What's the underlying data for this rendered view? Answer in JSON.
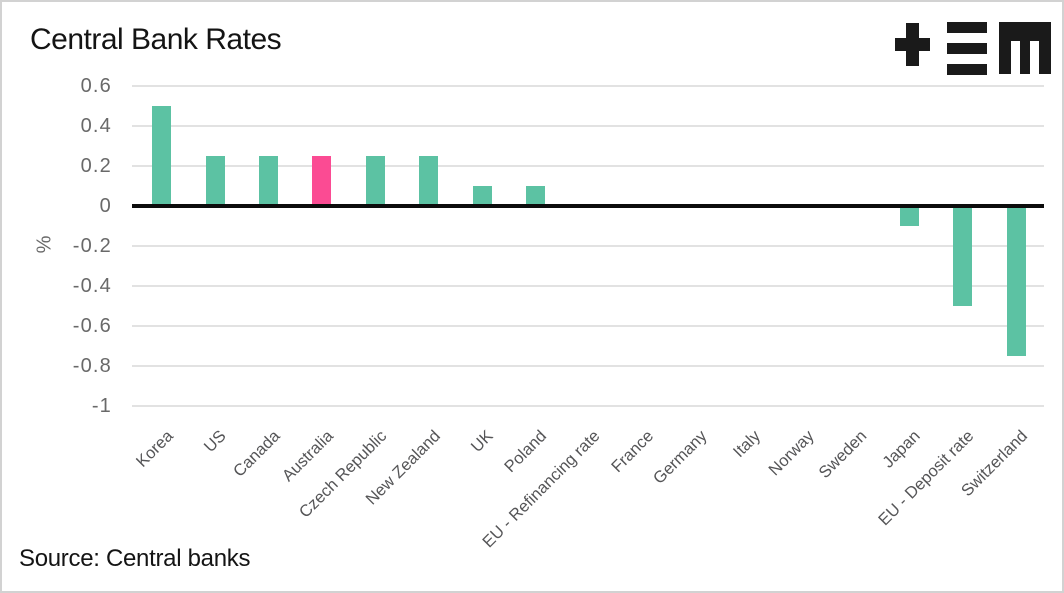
{
  "title": "Central Bank Rates",
  "source": "Source: Central banks",
  "logo": "plus-triplebar-m-logo",
  "colors": {
    "bar": "#5cc2a3",
    "highlight": "#fb4b93",
    "axis_line": "#0c0c0c",
    "gridline": "#e2e2e2",
    "tick_text": "#696969",
    "category_text": "#555557",
    "title_text": "#141414",
    "logo": "#1a1a1a",
    "background": "#ffffff"
  },
  "chart_data": {
    "type": "bar",
    "title": "Central Bank Rates",
    "xlabel": "",
    "ylabel": "%",
    "categories": [
      "Korea",
      "US",
      "Canada",
      "Australia",
      "Czech Republic",
      "New Zealand",
      "UK",
      "Poland",
      "EU - Refinancing rate",
      "France",
      "Germany",
      "Italy",
      "Norway",
      "Sweden",
      "Japan",
      "EU - Deposit rate",
      "Switzerland"
    ],
    "values": [
      0.5,
      0.25,
      0.25,
      0.25,
      0.25,
      0.25,
      0.1,
      0.1,
      0,
      0,
      0,
      0,
      0,
      0,
      -0.1,
      -0.5,
      -0.75
    ],
    "highlight_category": "Australia",
    "ylim": [
      -1,
      0.6
    ],
    "yticks": [
      0.6,
      0.4,
      0.2,
      0,
      -0.2,
      -0.4,
      -0.6,
      -0.8,
      -1
    ],
    "grid": true,
    "legend": false,
    "source_note": "Source: Central banks"
  }
}
